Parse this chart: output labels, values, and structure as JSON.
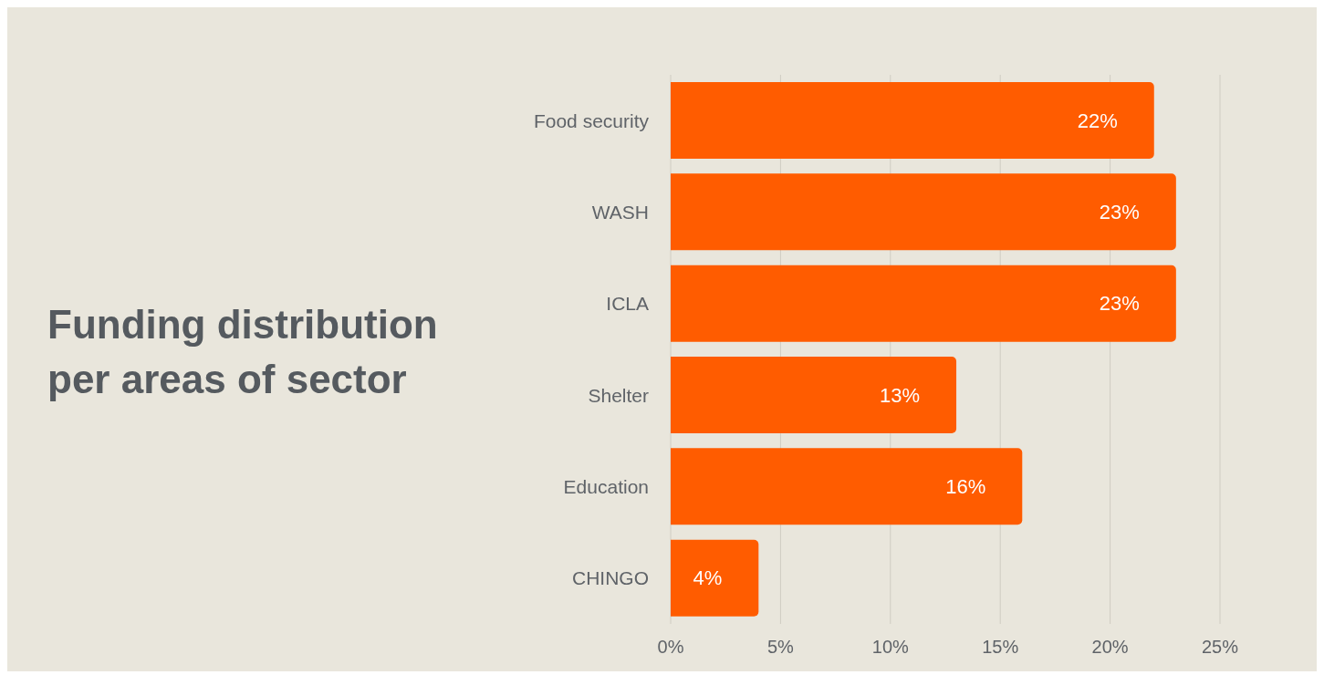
{
  "chart_data": {
    "type": "bar",
    "orientation": "horizontal",
    "title": "Funding distribution per areas of sector",
    "categories": [
      "Food security",
      "WASH",
      "ICLA",
      "Shelter",
      "Education",
      "CHINGO"
    ],
    "values": [
      22,
      23,
      23,
      13,
      16,
      4
    ],
    "value_labels": [
      "22%",
      "23%",
      "23%",
      "13%",
      "16%",
      "4%"
    ],
    "color": "#ff5c00",
    "xlim": [
      0,
      25
    ],
    "xticks": [
      {
        "value": 0,
        "label": "0%"
      },
      {
        "value": 5,
        "label": "5%"
      },
      {
        "value": 10,
        "label": "10%"
      },
      {
        "value": 15,
        "label": "15%"
      },
      {
        "value": 20,
        "label": "20%"
      },
      {
        "value": 25,
        "label": "25%"
      }
    ],
    "grid": "x",
    "legend": false
  }
}
